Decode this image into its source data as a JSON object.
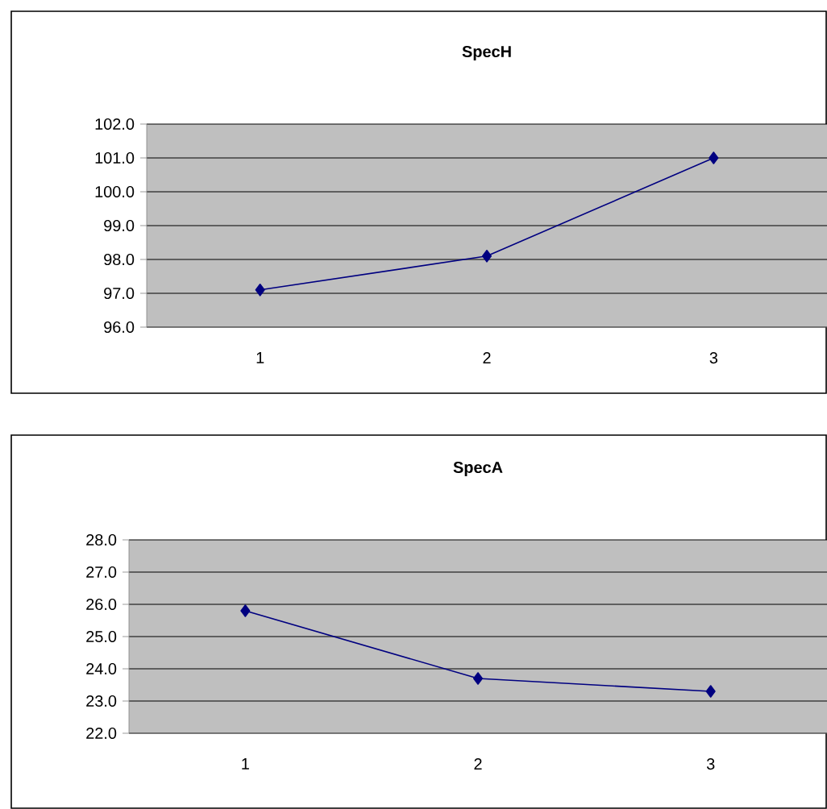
{
  "chart_data": [
    {
      "type": "line",
      "title": "SpecH",
      "categories": [
        "1",
        "2",
        "3"
      ],
      "values": [
        97.1,
        98.1,
        101.0
      ],
      "color": "#000080",
      "marker": "diamond",
      "grid": "y",
      "ylim": [
        96,
        102
      ],
      "yticks": [
        {
          "value": 96,
          "label": "96.0"
        },
        {
          "value": 97,
          "label": "97.0"
        },
        {
          "value": 98,
          "label": "98.0"
        },
        {
          "value": 99,
          "label": "99.0"
        },
        {
          "value": 100,
          "label": "100.0"
        },
        {
          "value": 101,
          "label": "101.0"
        },
        {
          "value": 102,
          "label": "102.0"
        }
      ]
    },
    {
      "type": "line",
      "title": "SpecA",
      "categories": [
        "1",
        "2",
        "3"
      ],
      "values": [
        25.8,
        23.7,
        23.3
      ],
      "color": "#000080",
      "marker": "diamond",
      "grid": "y",
      "ylim": [
        22,
        28
      ],
      "yticks": [
        {
          "value": 22,
          "label": "22.0"
        },
        {
          "value": 23,
          "label": "23.0"
        },
        {
          "value": 24,
          "label": "24.0"
        },
        {
          "value": 25,
          "label": "25.0"
        },
        {
          "value": 26,
          "label": "26.0"
        },
        {
          "value": 27,
          "label": "27.0"
        },
        {
          "value": 28,
          "label": "28.0"
        }
      ]
    }
  ]
}
